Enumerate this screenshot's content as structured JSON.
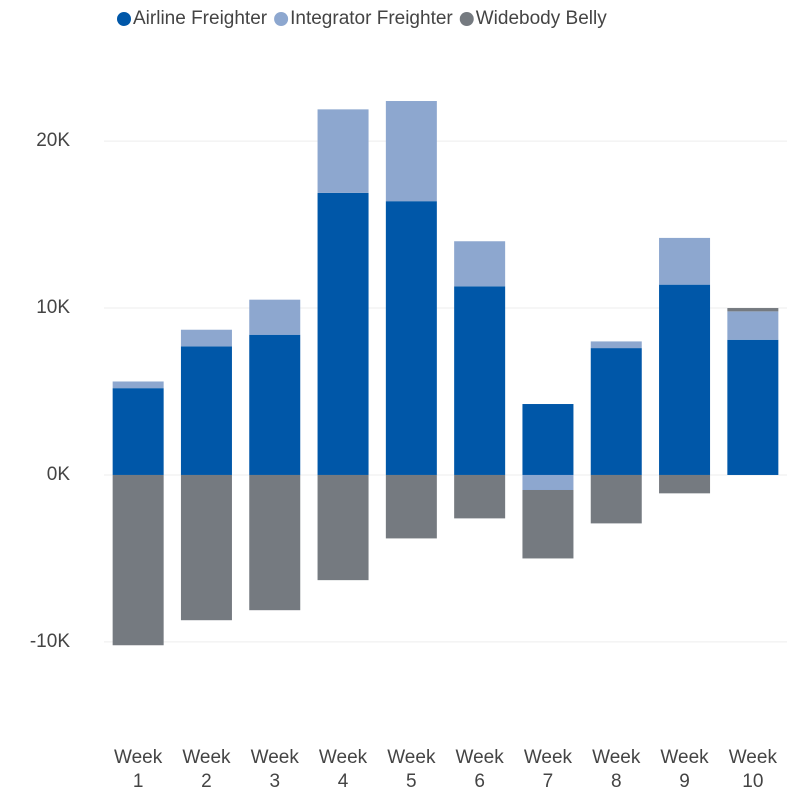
{
  "chart_data": {
    "type": "bar",
    "stacked": true,
    "categories": [
      "Week 1",
      "Week 2",
      "Week 3",
      "Week 4",
      "Week 5",
      "Week 6",
      "Week 7",
      "Week 8",
      "Week 9",
      "Week 10"
    ],
    "series": [
      {
        "name": "Airline Freighter",
        "color": "#0057a8",
        "values": [
          5200,
          7700,
          8400,
          16900,
          16400,
          11300,
          4250,
          7600,
          11400,
          8100
        ]
      },
      {
        "name": "Integrator Freighter",
        "color": "#8da7cf",
        "values": [
          400,
          1000,
          2100,
          5000,
          6000,
          2700,
          -900,
          400,
          2800,
          1700
        ]
      },
      {
        "name": "Widebody Belly",
        "color": "#757a80",
        "values": [
          -10200,
          -8700,
          -8100,
          -6300,
          -3800,
          -2600,
          -4100,
          -2900,
          -1100,
          200
        ]
      }
    ],
    "ylim": [
      -13000,
      23000
    ],
    "yticks": [
      {
        "value": -10000,
        "label": "-10K"
      },
      {
        "value": 0,
        "label": "0K"
      },
      {
        "value": 10000,
        "label": "10K"
      },
      {
        "value": 20000,
        "label": "20K"
      }
    ],
    "grid": true,
    "legend": "top"
  }
}
